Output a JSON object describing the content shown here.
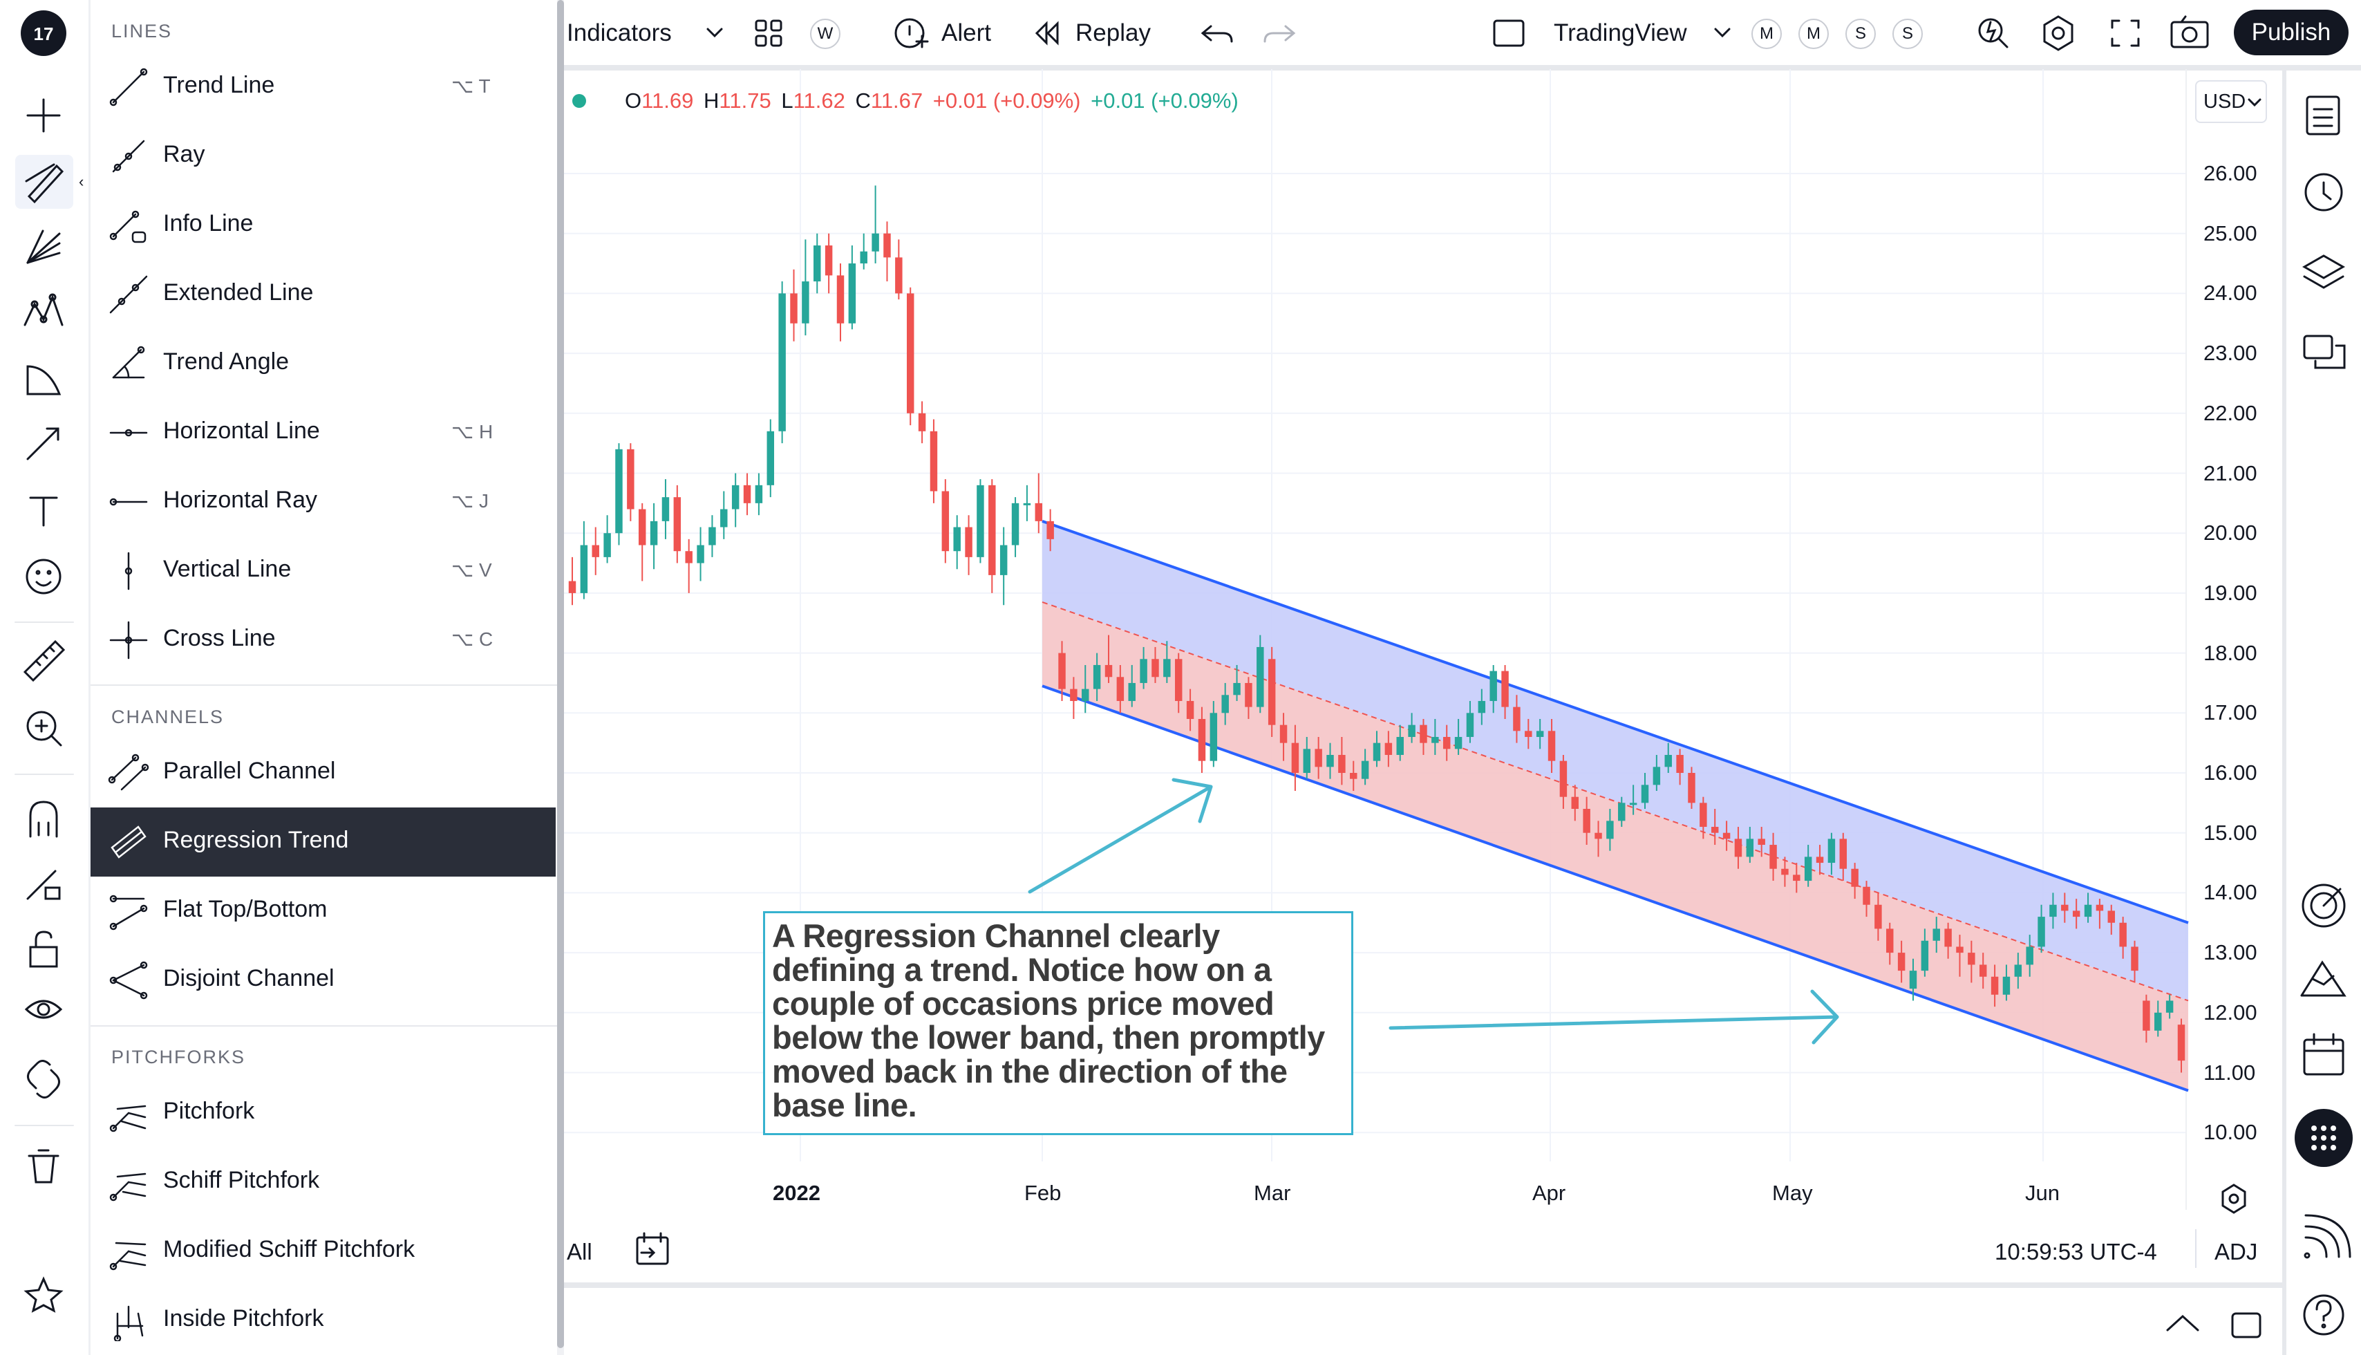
{
  "header": {
    "indicators_label": "Indicators",
    "interval_badge": "W",
    "alert_label": "Alert",
    "replay_label": "Replay",
    "layout_name": "TradingView",
    "badges": [
      "M",
      "M",
      "S",
      "S"
    ],
    "publish_label": "Publish"
  },
  "legend": {
    "o_label": "O",
    "o_value": "11.69",
    "h_label": "H",
    "h_value": "11.75",
    "l_label": "L",
    "l_value": "11.62",
    "c_label": "C",
    "c_value": "11.67",
    "change": "+0.01 (+0.09%)",
    "change2": "+0.01 (+0.09%)",
    "currency": "USD"
  },
  "menu": {
    "lines_header": "LINES",
    "lines": [
      {
        "label": "Trend Line",
        "shortcut": "⌥ T",
        "icon": "trend-line-icon"
      },
      {
        "label": "Ray",
        "shortcut": "",
        "icon": "ray-icon"
      },
      {
        "label": "Info Line",
        "shortcut": "",
        "icon": "info-line-icon"
      },
      {
        "label": "Extended Line",
        "shortcut": "",
        "icon": "extended-line-icon"
      },
      {
        "label": "Trend Angle",
        "shortcut": "",
        "icon": "trend-angle-icon"
      },
      {
        "label": "Horizontal Line",
        "shortcut": "⌥ H",
        "icon": "horizontal-line-icon"
      },
      {
        "label": "Horizontal Ray",
        "shortcut": "⌥ J",
        "icon": "horizontal-ray-icon"
      },
      {
        "label": "Vertical Line",
        "shortcut": "⌥ V",
        "icon": "vertical-line-icon"
      },
      {
        "label": "Cross Line",
        "shortcut": "⌥ C",
        "icon": "cross-line-icon"
      }
    ],
    "channels_header": "CHANNELS",
    "channels": [
      {
        "label": "Parallel Channel",
        "icon": "parallel-channel-icon"
      },
      {
        "label": "Regression Trend",
        "icon": "regression-trend-icon",
        "selected": true
      },
      {
        "label": "Flat Top/Bottom",
        "icon": "flat-top-bottom-icon"
      },
      {
        "label": "Disjoint Channel",
        "icon": "disjoint-channel-icon"
      }
    ],
    "pitchforks_header": "PITCHFORKS",
    "pitchforks": [
      {
        "label": "Pitchfork",
        "icon": "pitchfork-icon"
      },
      {
        "label": "Schiff Pitchfork",
        "icon": "schiff-pitchfork-icon"
      },
      {
        "label": "Modified Schiff Pitchfork",
        "icon": "modified-schiff-pitchfork-icon"
      },
      {
        "label": "Inside Pitchfork",
        "icon": "inside-pitchfork-icon"
      }
    ]
  },
  "price_axis": {
    "ticks": [
      "26.00",
      "25.00",
      "24.00",
      "23.00",
      "22.00",
      "21.00",
      "20.00",
      "19.00",
      "18.00",
      "17.00",
      "16.00",
      "15.00",
      "14.00",
      "13.00",
      "12.00",
      "11.00",
      "10.00"
    ]
  },
  "time_axis": {
    "ticks": [
      "2022",
      "Feb",
      "Mar",
      "Apr",
      "May",
      "Jun"
    ]
  },
  "annotation": {
    "text": "A Regression Channel clearly defining a trend. Notice how on a couple of occasions price moved below the lower band, then promptly moved back in the direction of the base line."
  },
  "bottom_bar": {
    "range_label": "All",
    "clock": "10:59:53 UTC-4",
    "adj_label": "ADJ"
  },
  "colors": {
    "up": "#26a69a",
    "down": "#ef5350",
    "channel_line": "#2962ff",
    "channel_upper_fill": "#c7cdfb",
    "channel_lower_fill": "#f5c4c7",
    "annotation_border": "#36b2cf",
    "selected_menu_bg": "#2a2e39"
  },
  "chart_data": {
    "type": "candlestick",
    "price_range": [
      10,
      26
    ],
    "time_ticks": [
      "2022",
      "Feb",
      "Mar",
      "Apr",
      "May",
      "Jun"
    ],
    "regression_channel": {
      "start": "2022-02-01",
      "end": "2022-06-17",
      "upper": [
        20.2,
        13.5
      ],
      "base": [
        18.85,
        12.2
      ],
      "lower": [
        17.45,
        10.7
      ]
    },
    "candles": [
      [
        19.2,
        19.0,
        19.6,
        18.8
      ],
      [
        19.0,
        19.8,
        20.2,
        18.9
      ],
      [
        19.8,
        19.6,
        20.1,
        19.3
      ],
      [
        19.6,
        20.0,
        20.3,
        19.5
      ],
      [
        20.0,
        21.4,
        21.5,
        19.8
      ],
      [
        21.4,
        20.4,
        21.5,
        20.2
      ],
      [
        20.4,
        19.8,
        20.5,
        19.2
      ],
      [
        19.8,
        20.2,
        20.5,
        19.4
      ],
      [
        20.2,
        20.6,
        20.9,
        19.9
      ],
      [
        20.6,
        19.7,
        20.8,
        19.5
      ],
      [
        19.7,
        19.5,
        19.9,
        19.0
      ],
      [
        19.5,
        19.8,
        20.1,
        19.2
      ],
      [
        19.8,
        20.1,
        20.3,
        19.6
      ],
      [
        20.1,
        20.4,
        20.7,
        19.9
      ],
      [
        20.4,
        20.8,
        21.0,
        20.1
      ],
      [
        20.8,
        20.5,
        21.0,
        20.3
      ],
      [
        20.5,
        20.8,
        21.0,
        20.3
      ],
      [
        20.8,
        21.7,
        21.9,
        20.6
      ],
      [
        21.7,
        24.0,
        24.2,
        21.5
      ],
      [
        24.0,
        23.5,
        24.4,
        23.2
      ],
      [
        23.5,
        24.2,
        24.9,
        23.3
      ],
      [
        24.2,
        24.8,
        25.0,
        24.0
      ],
      [
        24.8,
        24.3,
        25.0,
        24.0
      ],
      [
        24.3,
        23.5,
        24.5,
        23.2
      ],
      [
        23.5,
        24.5,
        24.8,
        23.4
      ],
      [
        24.5,
        24.7,
        25.0,
        24.4
      ],
      [
        24.7,
        25.0,
        25.8,
        24.5
      ],
      [
        25.0,
        24.6,
        25.2,
        24.2
      ],
      [
        24.6,
        24.0,
        24.9,
        23.9
      ],
      [
        24.0,
        22.0,
        24.1,
        21.8
      ],
      [
        22.0,
        21.7,
        22.2,
        21.5
      ],
      [
        21.7,
        20.7,
        21.9,
        20.5
      ],
      [
        20.7,
        19.7,
        20.9,
        19.5
      ],
      [
        19.7,
        20.1,
        20.3,
        19.4
      ],
      [
        20.1,
        19.6,
        20.3,
        19.3
      ],
      [
        19.6,
        20.8,
        20.9,
        19.5
      ],
      [
        20.8,
        19.3,
        20.9,
        19.0
      ],
      [
        19.3,
        19.8,
        20.1,
        18.8
      ],
      [
        19.8,
        20.5,
        20.6,
        19.6
      ],
      [
        20.5,
        20.5,
        20.8,
        20.2
      ],
      [
        20.5,
        20.2,
        21.0,
        20.0
      ],
      [
        20.2,
        19.9,
        20.4,
        19.7
      ],
      [
        18.0,
        17.4,
        18.2,
        17.2
      ],
      [
        17.4,
        17.2,
        17.6,
        16.9
      ],
      [
        17.2,
        17.4,
        17.8,
        17.0
      ],
      [
        17.4,
        17.8,
        18.0,
        17.2
      ],
      [
        17.8,
        17.6,
        18.3,
        17.5
      ],
      [
        17.6,
        17.2,
        17.8,
        17.0
      ],
      [
        17.2,
        17.5,
        17.8,
        17.1
      ],
      [
        17.5,
        17.9,
        18.1,
        17.4
      ],
      [
        17.9,
        17.6,
        18.1,
        17.5
      ],
      [
        17.6,
        17.9,
        18.2,
        17.5
      ],
      [
        17.9,
        17.2,
        18.0,
        17.0
      ],
      [
        17.2,
        16.9,
        17.4,
        16.7
      ],
      [
        16.9,
        16.2,
        17.1,
        16.0
      ],
      [
        16.2,
        17.0,
        17.2,
        16.1
      ],
      [
        17.0,
        17.3,
        17.5,
        16.8
      ],
      [
        17.3,
        17.5,
        17.8,
        17.2
      ],
      [
        17.5,
        17.1,
        17.6,
        16.9
      ],
      [
        17.1,
        18.1,
        18.3,
        17.0
      ],
      [
        17.9,
        16.8,
        18.1,
        16.6
      ],
      [
        16.8,
        16.5,
        17.0,
        16.2
      ],
      [
        16.5,
        16.0,
        16.8,
        15.7
      ],
      [
        16.0,
        16.4,
        16.6,
        15.9
      ],
      [
        16.4,
        16.1,
        16.6,
        15.9
      ],
      [
        16.1,
        16.3,
        16.5,
        15.9
      ],
      [
        16.3,
        16.0,
        16.6,
        15.8
      ],
      [
        16.0,
        15.9,
        16.2,
        15.7
      ],
      [
        15.9,
        16.2,
        16.4,
        15.8
      ],
      [
        16.2,
        16.5,
        16.7,
        16.1
      ],
      [
        16.5,
        16.3,
        16.7,
        16.1
      ],
      [
        16.3,
        16.6,
        16.8,
        16.2
      ],
      [
        16.6,
        16.8,
        17.0,
        16.5
      ],
      [
        16.8,
        16.5,
        16.9,
        16.3
      ],
      [
        16.5,
        16.6,
        16.9,
        16.3
      ],
      [
        16.6,
        16.4,
        16.8,
        16.2
      ],
      [
        16.4,
        16.6,
        16.9,
        16.3
      ],
      [
        16.6,
        17.0,
        17.2,
        16.5
      ],
      [
        17.0,
        17.2,
        17.4,
        16.8
      ],
      [
        17.2,
        17.7,
        17.8,
        17.0
      ],
      [
        17.7,
        17.1,
        17.8,
        16.9
      ],
      [
        17.1,
        16.7,
        17.3,
        16.5
      ],
      [
        16.7,
        16.6,
        16.9,
        16.4
      ],
      [
        16.6,
        16.7,
        16.9,
        16.4
      ],
      [
        16.7,
        16.2,
        16.9,
        16.0
      ],
      [
        16.2,
        15.6,
        16.3,
        15.4
      ],
      [
        15.6,
        15.4,
        15.8,
        15.2
      ],
      [
        15.4,
        15.0,
        15.6,
        14.8
      ],
      [
        15.0,
        14.9,
        15.2,
        14.6
      ],
      [
        14.9,
        15.2,
        15.4,
        14.7
      ],
      [
        15.2,
        15.5,
        15.6,
        15.1
      ],
      [
        15.5,
        15.5,
        15.8,
        15.3
      ],
      [
        15.5,
        15.8,
        16.0,
        15.4
      ],
      [
        15.8,
        16.1,
        16.3,
        15.7
      ],
      [
        16.1,
        16.3,
        16.5,
        16.0
      ],
      [
        16.3,
        16.0,
        16.4,
        15.8
      ],
      [
        16.0,
        15.5,
        16.1,
        15.4
      ],
      [
        15.5,
        15.1,
        15.6,
        14.9
      ],
      [
        15.1,
        15.0,
        15.4,
        14.8
      ],
      [
        15.0,
        14.9,
        15.2,
        14.7
      ],
      [
        14.9,
        14.6,
        15.1,
        14.4
      ],
      [
        14.6,
        14.9,
        15.1,
        14.5
      ],
      [
        14.9,
        14.8,
        15.1,
        14.6
      ],
      [
        14.8,
        14.4,
        15.0,
        14.2
      ],
      [
        14.4,
        14.3,
        14.6,
        14.1
      ],
      [
        14.3,
        14.2,
        14.5,
        14.0
      ],
      [
        14.2,
        14.6,
        14.8,
        14.1
      ],
      [
        14.6,
        14.5,
        14.8,
        14.3
      ],
      [
        14.5,
        14.9,
        15.0,
        14.3
      ],
      [
        14.9,
        14.4,
        15.0,
        14.2
      ],
      [
        14.4,
        14.1,
        14.5,
        13.9
      ],
      [
        14.1,
        13.8,
        14.2,
        13.6
      ],
      [
        13.8,
        13.4,
        14.0,
        13.2
      ],
      [
        13.4,
        13.0,
        13.5,
        12.8
      ],
      [
        13.0,
        12.7,
        13.2,
        12.5
      ],
      [
        12.4,
        12.7,
        12.9,
        12.2
      ],
      [
        12.7,
        13.2,
        13.4,
        12.6
      ],
      [
        13.2,
        13.4,
        13.6,
        13.0
      ],
      [
        13.4,
        13.1,
        13.5,
        12.9
      ],
      [
        13.1,
        13.0,
        13.3,
        12.6
      ],
      [
        13.0,
        12.8,
        13.2,
        12.5
      ],
      [
        12.8,
        12.6,
        13.0,
        12.4
      ],
      [
        12.6,
        12.3,
        12.8,
        12.1
      ],
      [
        12.3,
        12.6,
        12.8,
        12.2
      ],
      [
        12.6,
        12.8,
        13.0,
        12.4
      ],
      [
        12.8,
        13.1,
        13.3,
        12.6
      ],
      [
        13.1,
        13.6,
        13.8,
        13.0
      ],
      [
        13.6,
        13.8,
        14.0,
        13.4
      ],
      [
        13.8,
        13.7,
        14.0,
        13.5
      ],
      [
        13.7,
        13.6,
        13.9,
        13.4
      ],
      [
        13.6,
        13.8,
        14.0,
        13.5
      ],
      [
        13.8,
        13.7,
        13.9,
        13.4
      ],
      [
        13.7,
        13.5,
        13.8,
        13.3
      ],
      [
        13.5,
        13.1,
        13.6,
        12.9
      ],
      [
        13.1,
        12.7,
        13.2,
        12.5
      ],
      [
        12.2,
        11.7,
        12.3,
        11.5
      ],
      [
        11.7,
        12.0,
        12.2,
        11.6
      ],
      [
        12.0,
        12.2,
        12.3,
        11.9
      ],
      [
        11.8,
        11.2,
        11.9,
        11.0
      ]
    ]
  }
}
